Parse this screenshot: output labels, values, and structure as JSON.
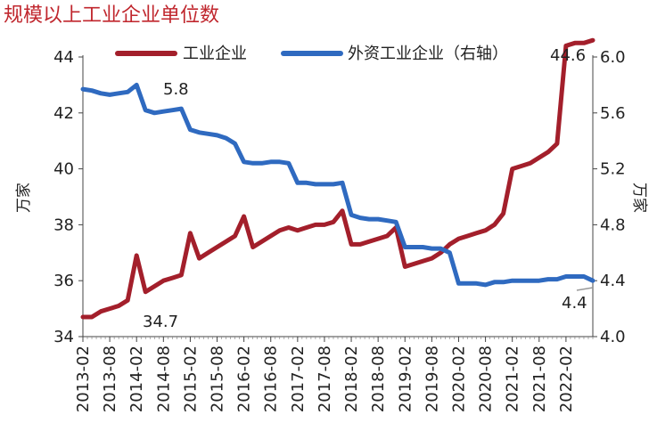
{
  "chart_data": {
    "type": "line",
    "title": "规模以上工业企业单位数",
    "ylabel_left": "万家",
    "ylabel_right": "万家",
    "ylim_left": [
      34,
      44
    ],
    "ylim_right": [
      4.0,
      6.0
    ],
    "yticks_left": [
      "34",
      "36",
      "38",
      "40",
      "42",
      "44"
    ],
    "yticks_right": [
      "4.0",
      "4.4",
      "4.8",
      "5.2",
      "5.6",
      "6.0"
    ],
    "x_tick_labels": [
      "2013-02",
      "2013-08",
      "2014-02",
      "2014-08",
      "2015-02",
      "2015-08",
      "2016-02",
      "2016-08",
      "2017-02",
      "2017-08",
      "2018-02",
      "2018-08",
      "2019-02",
      "2019-08",
      "2020-02",
      "2020-08",
      "2021-02",
      "2021-08",
      "2022-02"
    ],
    "x": [
      "2013-02",
      "2013-04",
      "2013-06",
      "2013-08",
      "2013-10",
      "2013-12",
      "2014-02",
      "2014-04",
      "2014-06",
      "2014-08",
      "2014-10",
      "2014-12",
      "2015-02",
      "2015-04",
      "2015-06",
      "2015-08",
      "2015-10",
      "2015-12",
      "2016-02",
      "2016-04",
      "2016-06",
      "2016-08",
      "2016-10",
      "2016-12",
      "2017-02",
      "2017-04",
      "2017-06",
      "2017-08",
      "2017-10",
      "2017-12",
      "2018-02",
      "2018-04",
      "2018-06",
      "2018-08",
      "2018-10",
      "2018-12",
      "2019-02",
      "2019-04",
      "2019-06",
      "2019-08",
      "2019-10",
      "2019-12",
      "2020-02",
      "2020-04",
      "2020-06",
      "2020-08",
      "2020-10",
      "2020-12",
      "2021-02",
      "2021-04",
      "2021-06",
      "2021-08",
      "2021-10",
      "2021-12",
      "2022-02",
      "2022-04",
      "2022-06",
      "2022-08"
    ],
    "series": [
      {
        "name": "工业企业",
        "axis": "left",
        "color": "#a31f2b",
        "values": [
          34.7,
          34.7,
          34.9,
          35.0,
          35.1,
          35.3,
          36.9,
          35.6,
          35.8,
          36.0,
          36.1,
          36.2,
          37.7,
          36.8,
          37.0,
          37.2,
          37.4,
          37.6,
          38.3,
          37.2,
          37.4,
          37.6,
          37.8,
          37.9,
          37.8,
          37.9,
          38.0,
          38.0,
          38.1,
          38.5,
          37.3,
          37.3,
          37.4,
          37.5,
          37.6,
          37.9,
          36.5,
          36.6,
          36.7,
          36.8,
          37.0,
          37.3,
          37.5,
          37.6,
          37.7,
          37.8,
          38.0,
          38.4,
          40.0,
          40.1,
          40.2,
          40.4,
          40.6,
          40.9,
          44.4,
          44.5,
          44.5,
          44.6
        ]
      },
      {
        "name": "外资工业企业（右轴）",
        "axis": "right",
        "color": "#2f6ac0",
        "values": [
          5.77,
          5.76,
          5.74,
          5.73,
          5.74,
          5.75,
          5.8,
          5.62,
          5.6,
          5.61,
          5.62,
          5.63,
          5.48,
          5.46,
          5.45,
          5.44,
          5.42,
          5.38,
          5.25,
          5.24,
          5.24,
          5.25,
          5.25,
          5.24,
          5.1,
          5.1,
          5.09,
          5.09,
          5.09,
          5.1,
          4.87,
          4.85,
          4.84,
          4.84,
          4.83,
          4.82,
          4.64,
          4.64,
          4.64,
          4.63,
          4.63,
          4.6,
          4.38,
          4.38,
          4.38,
          4.37,
          4.39,
          4.39,
          4.4,
          4.4,
          4.4,
          4.4,
          4.41,
          4.41,
          4.43,
          4.43,
          4.43,
          4.4
        ]
      }
    ],
    "annotations": [
      "44.6",
      "5.8",
      "34.7",
      "4.4"
    ],
    "legend_position": "top"
  }
}
